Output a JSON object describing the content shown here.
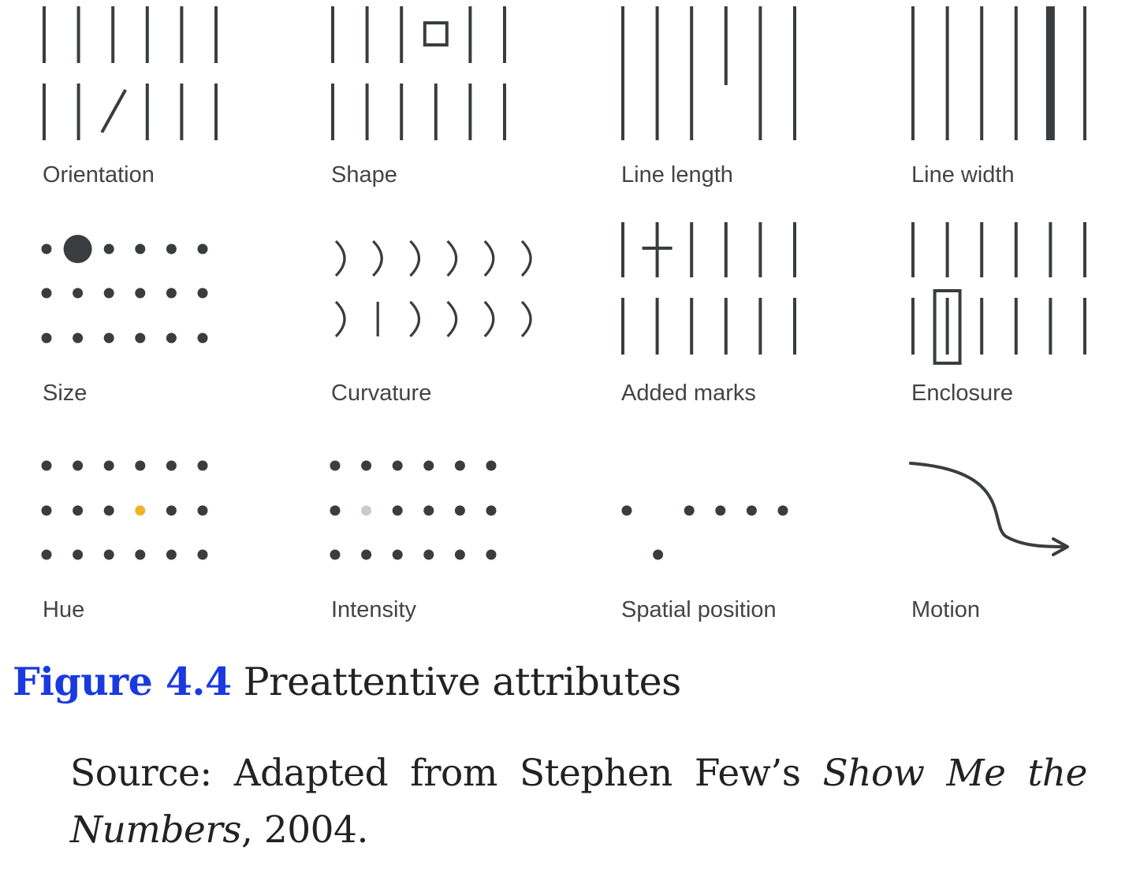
{
  "colors": {
    "ink": "#3a3d3f",
    "label": "#444444",
    "hue_highlight": "#f0b429",
    "intensity_highlight": "#c7ccce",
    "figure_number": "#1a3ae0"
  },
  "panels": [
    {
      "id": "orientation",
      "label": "Orientation"
    },
    {
      "id": "shape",
      "label": "Shape"
    },
    {
      "id": "line-length",
      "label": "Line length"
    },
    {
      "id": "line-width",
      "label": "Line width"
    },
    {
      "id": "size",
      "label": "Size"
    },
    {
      "id": "curvature",
      "label": "Curvature"
    },
    {
      "id": "added-marks",
      "label": "Added marks"
    },
    {
      "id": "enclosure",
      "label": "Enclosure"
    },
    {
      "id": "hue",
      "label": "Hue"
    },
    {
      "id": "intensity",
      "label": "Intensity"
    },
    {
      "id": "spatial-position",
      "label": "Spatial position"
    },
    {
      "id": "motion",
      "label": "Motion"
    }
  ],
  "caption": {
    "number": "Figure 4.4",
    "title": "Preattentive attributes",
    "source_prefix": "Source: Adapted from Stephen Few’s ",
    "source_title": "Show Me the Numbers",
    "source_suffix": ", 2004."
  }
}
